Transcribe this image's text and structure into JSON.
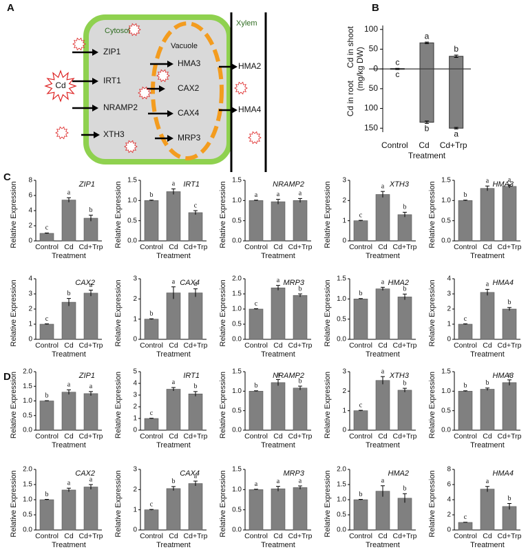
{
  "panel_labels": [
    "A",
    "B",
    "C",
    "D"
  ],
  "diagram": {
    "cytosol": "Cytosol",
    "xylem": "Xylem",
    "vacuole": "Vacuole",
    "cd": "Cd",
    "plasma_membrane": [
      "ZIP1",
      "IRT1",
      "NRAMP2",
      "XTH3"
    ],
    "tonoplast": [
      "HMA3",
      "CAX2",
      "CAX4",
      "MRP3"
    ],
    "xylem_loading": [
      "HMA2",
      "HMA4"
    ]
  },
  "chart_data": [
    {
      "type": "bar",
      "ylabel_top": "Cd in shoot",
      "ylabel_unit": "(mg/kg DW)",
      "ylabel_bottom": "Cd in root",
      "xlabel": "Treatment",
      "categories": [
        "Control",
        "Cd",
        "Cd+Trp"
      ],
      "color": "#808080",
      "series": [
        {
          "values": [
            1,
            66,
            32
          ],
          "errors": [
            0.5,
            2,
            3
          ],
          "letters": [
            "c",
            "a",
            "b"
          ]
        },
        {
          "values": [
            -1,
            -135,
            -150
          ],
          "errors": [
            0.5,
            3,
            2
          ],
          "letters": [
            "c",
            "b",
            "a"
          ]
        }
      ],
      "ylim": [
        -160,
        110
      ],
      "yticks": [
        {
          "value": -150,
          "label": "150"
        },
        {
          "value": -100,
          "label": "100"
        },
        {
          "value": -50,
          "label": "50"
        },
        0,
        50,
        100
      ]
    },
    {
      "type": "bar",
      "title": "ZIP1",
      "ylabel": "Relative Expression",
      "xlabel": "Treatment",
      "categories": [
        "Control",
        "Cd",
        "Cd+Trp"
      ],
      "color": "#808080",
      "values": [
        1,
        5.4,
        3.0
      ],
      "errors": [
        0.05,
        0.3,
        0.4
      ],
      "letters": [
        "c",
        "a",
        "b"
      ],
      "ylim": [
        0,
        8
      ],
      "yticks": [
        0,
        2,
        4,
        6,
        8
      ]
    },
    {
      "type": "bar",
      "title": "IRT1",
      "ylabel": "Relative Expression",
      "xlabel": "Treatment",
      "categories": [
        "Control",
        "Cd",
        "Cd+Trp"
      ],
      "color": "#808080",
      "values": [
        1.0,
        1.22,
        0.7
      ],
      "errors": [
        0.01,
        0.07,
        0.05
      ],
      "letters": [
        "b",
        "a",
        "c"
      ],
      "ylim": [
        0,
        1.5
      ],
      "yticks": [
        {
          "value": 0,
          "label": "0.0"
        },
        0.5,
        {
          "value": 1,
          "label": "1.0"
        },
        1.5
      ]
    },
    {
      "type": "bar",
      "title": "NRAMP2",
      "ylabel": "Relative Expression",
      "xlabel": "Treatment",
      "categories": [
        "Control",
        "Cd",
        "Cd+Trp"
      ],
      "color": "#808080",
      "values": [
        1.0,
        0.97,
        1.0
      ],
      "errors": [
        0.01,
        0.06,
        0.05
      ],
      "letters": [
        "a",
        "a",
        "a"
      ],
      "ylim": [
        0,
        1.5
      ],
      "yticks": [
        {
          "value": 0,
          "label": "0.0"
        },
        0.5,
        {
          "value": 1,
          "label": "1.0"
        },
        1.5
      ]
    },
    {
      "type": "bar",
      "title": "XTH3",
      "ylabel": "Relative Expression",
      "xlabel": "Treatment",
      "categories": [
        "Control",
        "Cd",
        "Cd+Trp"
      ],
      "color": "#808080",
      "values": [
        1,
        2.3,
        1.3
      ],
      "errors": [
        0.02,
        0.15,
        0.12
      ],
      "letters": [
        "c",
        "a",
        "b"
      ],
      "ylim": [
        0,
        3
      ],
      "yticks": [
        0,
        1,
        2,
        3
      ]
    },
    {
      "type": "bar",
      "title": "HMA3",
      "ylabel": "Relative Expression",
      "xlabel": "Treatment",
      "categories": [
        "Control",
        "Cd",
        "Cd+Trp"
      ],
      "color": "#808080",
      "values": [
        1.0,
        1.3,
        1.35
      ],
      "errors": [
        0.01,
        0.06,
        0.04
      ],
      "letters": [
        "b",
        "a",
        "a"
      ],
      "ylim": [
        0,
        1.5
      ],
      "yticks": [
        {
          "value": 0,
          "label": "0.0"
        },
        0.5,
        {
          "value": 1,
          "label": "1.0"
        },
        1.5
      ]
    },
    {
      "type": "bar",
      "title": "CAX2",
      "ylabel": "Relative Expression",
      "xlabel": "Treatment",
      "categories": [
        "Control",
        "Cd",
        "Cd+Trp"
      ],
      "color": "#808080",
      "values": [
        1,
        2.45,
        3.05
      ],
      "errors": [
        0.02,
        0.25,
        0.2
      ],
      "letters": [
        "c",
        "b",
        "a"
      ],
      "ylim": [
        0,
        4
      ],
      "yticks": [
        0,
        1,
        2,
        3,
        4
      ]
    },
    {
      "type": "bar",
      "title": "CAX4",
      "ylabel": "Relative Expression",
      "xlabel": "Treatment",
      "categories": [
        "Control",
        "Cd",
        "Cd+Trp"
      ],
      "color": "#808080",
      "values": [
        1,
        2.3,
        2.3
      ],
      "errors": [
        0.02,
        0.3,
        0.2
      ],
      "letters": [
        "b",
        "a",
        "a"
      ],
      "ylim": [
        0,
        3
      ],
      "yticks": [
        0,
        1,
        2,
        3
      ]
    },
    {
      "type": "bar",
      "title": "MRP3",
      "ylabel": "Relative Expression",
      "xlabel": "Treatment",
      "categories": [
        "Control",
        "Cd",
        "Cd+Trp"
      ],
      "color": "#808080",
      "values": [
        1.0,
        1.7,
        1.45
      ],
      "errors": [
        0.01,
        0.08,
        0.05
      ],
      "letters": [
        "c",
        "a",
        "b"
      ],
      "ylim": [
        0,
        2
      ],
      "yticks": [
        {
          "value": 0,
          "label": "0.0"
        },
        0.5,
        {
          "value": 1,
          "label": "1.0"
        },
        1.5,
        {
          "value": 2,
          "label": "2.0"
        }
      ]
    },
    {
      "type": "bar",
      "title": "HMA2",
      "ylabel": "Relative Expression",
      "xlabel": "Treatment",
      "categories": [
        "Control",
        "Cd",
        "Cd+Trp"
      ],
      "color": "#808080",
      "values": [
        1.0,
        1.25,
        1.05
      ],
      "errors": [
        0.01,
        0.04,
        0.07
      ],
      "letters": [
        "b",
        "a",
        "b"
      ],
      "ylim": [
        0,
        1.5
      ],
      "yticks": [
        {
          "value": 0,
          "label": "0.0"
        },
        0.5,
        {
          "value": 1,
          "label": "1.0"
        },
        1.5
      ]
    },
    {
      "type": "bar",
      "title": "HMA4",
      "ylabel": "Relative Expression",
      "xlabel": "Treatment",
      "categories": [
        "Control",
        "Cd",
        "Cd+Trp"
      ],
      "color": "#808080",
      "values": [
        1,
        3.1,
        2.0
      ],
      "errors": [
        0.02,
        0.2,
        0.1
      ],
      "letters": [
        "c",
        "a",
        "b"
      ],
      "ylim": [
        0,
        4
      ],
      "yticks": [
        0,
        1,
        2,
        3,
        4
      ]
    },
    {
      "type": "bar",
      "title": "ZIP1",
      "ylabel": "Relative Expression",
      "xlabel": "Treatment",
      "categories": [
        "Control",
        "Cd",
        "Cd+Trp"
      ],
      "color": "#808080",
      "values": [
        1.0,
        1.3,
        1.25
      ],
      "errors": [
        0.01,
        0.08,
        0.07
      ],
      "letters": [
        "b",
        "a",
        "a"
      ],
      "ylim": [
        0,
        2
      ],
      "yticks": [
        {
          "value": 0,
          "label": "0.0"
        },
        0.5,
        {
          "value": 1,
          "label": "1.0"
        },
        1.5,
        {
          "value": 2,
          "label": "2.0"
        }
      ]
    },
    {
      "type": "bar",
      "title": "IRT1",
      "ylabel": "Relative Expression",
      "xlabel": "Treatment",
      "categories": [
        "Control",
        "Cd",
        "Cd+Trp"
      ],
      "color": "#808080",
      "values": [
        1,
        3.5,
        3.1
      ],
      "errors": [
        0.02,
        0.15,
        0.2
      ],
      "letters": [
        "c",
        "a",
        "b"
      ],
      "ylim": [
        0,
        5
      ],
      "yticks": [
        0,
        1,
        2,
        3,
        4,
        5
      ]
    },
    {
      "type": "bar",
      "title": "NRAMP2",
      "ylabel": "Relative Expression",
      "xlabel": "Treatment",
      "categories": [
        "Control",
        "Cd",
        "Cd+Trp"
      ],
      "color": "#808080",
      "values": [
        1.0,
        1.22,
        1.08
      ],
      "errors": [
        0.01,
        0.08,
        0.05
      ],
      "letters": [
        "b",
        "a",
        "b"
      ],
      "ylim": [
        0,
        1.5
      ],
      "yticks": [
        {
          "value": 0,
          "label": "0.0"
        },
        0.5,
        {
          "value": 1,
          "label": "1.0"
        },
        1.5
      ]
    },
    {
      "type": "bar",
      "title": "XTH3",
      "ylabel": "Relative Expression",
      "xlabel": "Treatment",
      "categories": [
        "Control",
        "Cd",
        "Cd+Trp"
      ],
      "color": "#808080",
      "values": [
        1,
        2.55,
        2.05
      ],
      "errors": [
        0.02,
        0.2,
        0.1
      ],
      "letters": [
        "c",
        "a",
        "b"
      ],
      "ylim": [
        0,
        3
      ],
      "yticks": [
        0,
        1,
        2,
        3
      ]
    },
    {
      "type": "bar",
      "title": "HMA3",
      "ylabel": "Relative Expression",
      "xlabel": "Treatment",
      "categories": [
        "Control",
        "Cd",
        "Cd+Trp"
      ],
      "color": "#808080",
      "values": [
        1.0,
        1.05,
        1.22
      ],
      "errors": [
        0.01,
        0.03,
        0.07
      ],
      "letters": [
        "b",
        "b",
        "a"
      ],
      "ylim": [
        0,
        1.5
      ],
      "yticks": [
        {
          "value": 0,
          "label": "0.0"
        },
        0.5,
        {
          "value": 1,
          "label": "1.0"
        },
        1.5
      ]
    },
    {
      "type": "bar",
      "title": "CAX2",
      "ylabel": "Relative Expression",
      "xlabel": "Treatment",
      "categories": [
        "Control",
        "Cd",
        "Cd+Trp"
      ],
      "color": "#808080",
      "values": [
        1.0,
        1.32,
        1.42
      ],
      "errors": [
        0.01,
        0.06,
        0.08
      ],
      "letters": [
        "b",
        "a",
        "a"
      ],
      "ylim": [
        0,
        2
      ],
      "yticks": [
        {
          "value": 0,
          "label": "0.0"
        },
        0.5,
        {
          "value": 1,
          "label": "1.0"
        },
        1.5,
        {
          "value": 2,
          "label": "2.0"
        }
      ]
    },
    {
      "type": "bar",
      "title": "CAX4",
      "ylabel": "Relative Expression",
      "xlabel": "Treatment",
      "categories": [
        "Control",
        "Cd",
        "Cd+Trp"
      ],
      "color": "#808080",
      "values": [
        1,
        2.05,
        2.3
      ],
      "errors": [
        0.02,
        0.1,
        0.12
      ],
      "letters": [
        "c",
        "b",
        "a"
      ],
      "ylim": [
        0,
        3
      ],
      "yticks": [
        0,
        1,
        2,
        3
      ]
    },
    {
      "type": "bar",
      "title": "MRP3",
      "ylabel": "Relative Expression",
      "xlabel": "Treatment",
      "categories": [
        "Control",
        "Cd",
        "Cd+Trp"
      ],
      "color": "#808080",
      "values": [
        1.0,
        1.02,
        1.05
      ],
      "errors": [
        0.01,
        0.06,
        0.04
      ],
      "letters": [
        "a",
        "a",
        "a"
      ],
      "ylim": [
        0,
        1.5
      ],
      "yticks": [
        {
          "value": 0,
          "label": "0.0"
        },
        0.5,
        {
          "value": 1,
          "label": "1.0"
        },
        1.5
      ]
    },
    {
      "type": "bar",
      "title": "HMA2",
      "ylabel": "Relative Expression",
      "xlabel": "Treatment",
      "categories": [
        "Control",
        "Cd",
        "Cd+Trp"
      ],
      "color": "#808080",
      "values": [
        1,
        1.28,
        1.05
      ],
      "errors": [
        0.01,
        0.18,
        0.15
      ],
      "letters": [
        "b",
        "a",
        "b"
      ],
      "ylim": [
        0,
        2
      ],
      "yticks": [
        {
          "value": 0,
          "label": "0.0"
        },
        0.5,
        {
          "value": 1,
          "label": "1.0"
        },
        1.5,
        {
          "value": 2,
          "label": "2.0"
        }
      ]
    },
    {
      "type": "bar",
      "title": "HMA4",
      "ylabel": "Relative Expression",
      "xlabel": "Treatment",
      "categories": [
        "Control",
        "Cd",
        "Cd+Trp"
      ],
      "color": "#808080",
      "values": [
        1,
        5.4,
        3.1
      ],
      "errors": [
        0.02,
        0.35,
        0.4
      ],
      "letters": [
        "c",
        "a",
        "b"
      ],
      "ylim": [
        0,
        8
      ],
      "yticks": [
        0,
        2,
        4,
        6,
        8
      ]
    }
  ]
}
